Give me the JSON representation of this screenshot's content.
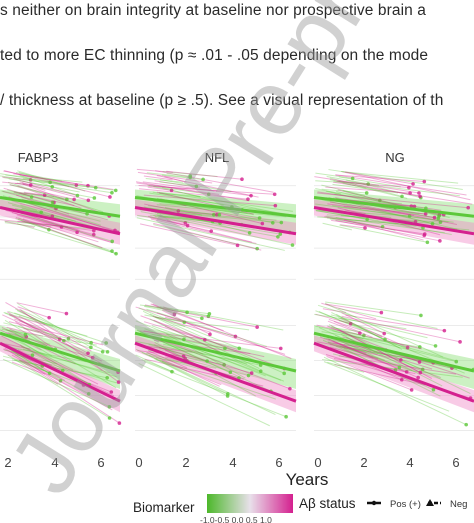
{
  "text_lines": [
    "s neither on brain integrity at baseline nor prospective brain a",
    "ted to more EC thinning (p ≈ .01 - .05 depending on the mode",
    "/ thickness at baseline (p ≥ .5). See a visual representation of th"
  ],
  "figure": {
    "panel_titles": [
      "FABP3",
      "NFL",
      "NG"
    ],
    "x_ticks": [
      "2",
      "4",
      "6",
      "0",
      "2",
      "4",
      "6",
      "0",
      "2",
      "4",
      "6"
    ],
    "x_axis_label": "Years",
    "legend": {
      "biomarker_title": "Biomarker",
      "biomarker_ticks": "-1.0-0.5 0.0 0.5 1.0",
      "abeta_title": "Aβ status",
      "pos_label": "Pos (+)",
      "neg_label": "Neg"
    },
    "colors": {
      "green": "#5cc83a",
      "pink": "#d4208f",
      "band_green": "#8ee07a",
      "band_pink": "#f08cc8",
      "grid": "#ebebeb"
    }
  },
  "watermark": "Journal Pre-proof"
}
